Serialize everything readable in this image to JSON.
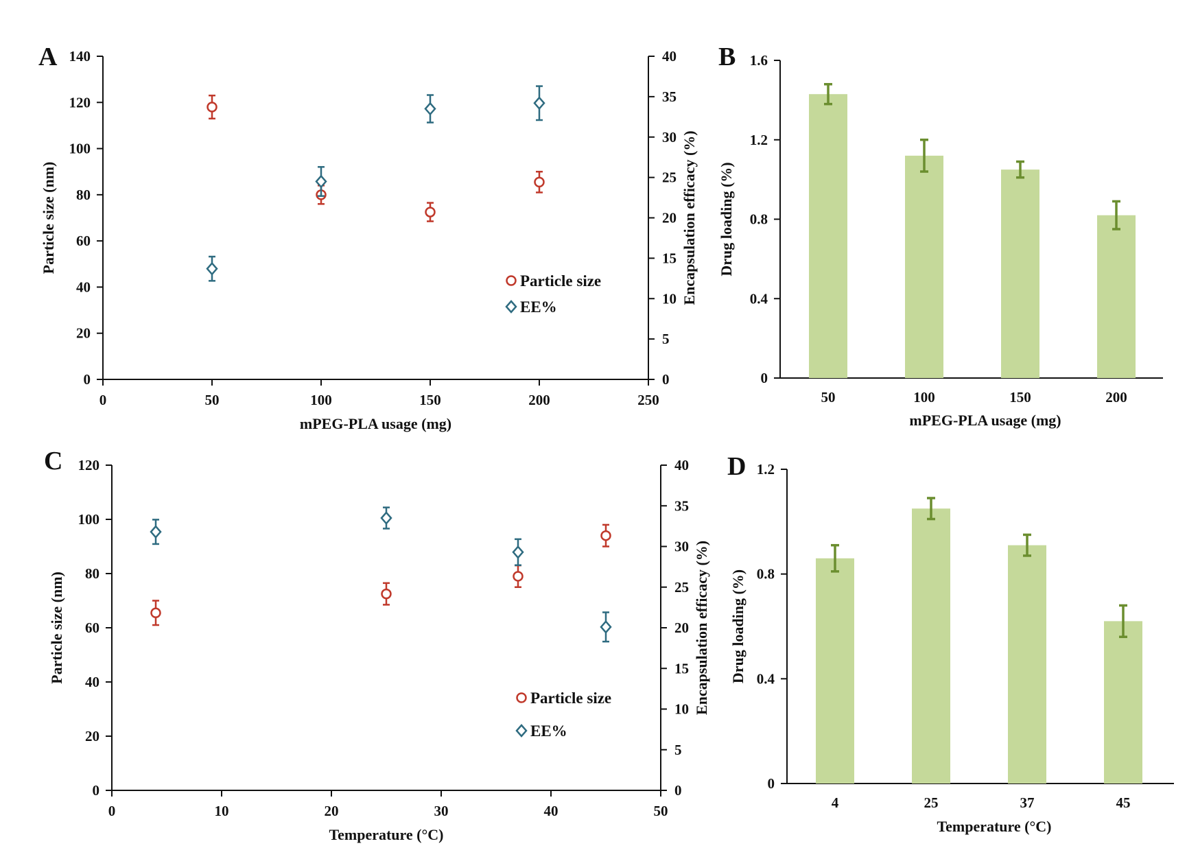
{
  "chart_data": [
    {
      "panel": "A",
      "type": "scatter",
      "xlabel": "mPEG-PLA usage (mg)",
      "ylabel": "Particle size (nm)",
      "y2label": "Encapsulation efficacy (%)",
      "xlim": [
        0,
        250
      ],
      "ylim": [
        0,
        140
      ],
      "y2lim": [
        0,
        40
      ],
      "xticks": [
        "0",
        "50",
        "100",
        "150",
        "200",
        "250"
      ],
      "yticks": [
        "0",
        "20",
        "40",
        "60",
        "80",
        "100",
        "120",
        "140"
      ],
      "y2ticks": [
        "0",
        "5",
        "10",
        "15",
        "20",
        "25",
        "30",
        "35",
        "40"
      ],
      "series": [
        {
          "name": "Particle size",
          "axis": "left",
          "marker": "circle",
          "color": "#c0392b",
          "x": [
            50,
            100,
            150,
            200
          ],
          "values": [
            118,
            80,
            72.5,
            85.5
          ],
          "errors": [
            5,
            4,
            4,
            4.5
          ]
        },
        {
          "name": "EE%",
          "axis": "right",
          "marker": "diamond",
          "color": "#2e6b80",
          "x": [
            50,
            100,
            150,
            200
          ],
          "values": [
            13.7,
            24.5,
            33.5,
            34.2
          ],
          "errors": [
            1.5,
            1.8,
            1.7,
            2.1
          ]
        }
      ],
      "legend": [
        "Particle size",
        "EE%"
      ]
    },
    {
      "panel": "B",
      "type": "bar",
      "xlabel": "mPEG-PLA usage (mg)",
      "ylabel": "Drug loading (%)",
      "ylim": [
        0,
        1.6
      ],
      "yticks": [
        "0",
        "0.4",
        "0.8",
        "1.2",
        "1.6"
      ],
      "categories": [
        "50",
        "100",
        "150",
        "200"
      ],
      "values": [
        1.43,
        1.12,
        1.05,
        0.82
      ],
      "errors": [
        0.05,
        0.08,
        0.04,
        0.07
      ],
      "color": "#c5d99a",
      "error_color": "#6b8e2f"
    },
    {
      "panel": "C",
      "type": "scatter",
      "xlabel": "Temperature (°C)",
      "ylabel": "Particle size (nm)",
      "y2label": "Encapsulation efficacy (%)",
      "xlim": [
        0,
        50
      ],
      "ylim": [
        0,
        120
      ],
      "y2lim": [
        0,
        40
      ],
      "xticks": [
        "0",
        "10",
        "20",
        "30",
        "40",
        "50"
      ],
      "yticks": [
        "0",
        "20",
        "40",
        "60",
        "80",
        "100",
        "120"
      ],
      "y2ticks": [
        "0",
        "5",
        "10",
        "15",
        "20",
        "25",
        "30",
        "35",
        "40"
      ],
      "series": [
        {
          "name": "Particle size",
          "axis": "left",
          "marker": "circle",
          "color": "#c0392b",
          "x": [
            4,
            25,
            37,
            45
          ],
          "values": [
            65.5,
            72.5,
            79,
            94
          ],
          "errors": [
            4.5,
            4,
            4,
            4
          ]
        },
        {
          "name": "EE%",
          "axis": "right",
          "marker": "diamond",
          "color": "#2e6b80",
          "x": [
            4,
            25,
            37,
            45
          ],
          "values": [
            31.8,
            33.5,
            29.3,
            20.1
          ],
          "errors": [
            1.5,
            1.3,
            1.6,
            1.8
          ]
        }
      ],
      "legend": [
        "Particle size",
        "EE%"
      ]
    },
    {
      "panel": "D",
      "type": "bar",
      "xlabel": "Temperature (°C)",
      "ylabel": "Drug loading (%)",
      "ylim": [
        0,
        1.2
      ],
      "yticks": [
        "0",
        "0.4",
        "0.8",
        "1.2"
      ],
      "categories": [
        "4",
        "25",
        "37",
        "45"
      ],
      "values": [
        0.86,
        1.05,
        0.91,
        0.62
      ],
      "errors": [
        0.05,
        0.04,
        0.04,
        0.06
      ],
      "color": "#c5d99a",
      "error_color": "#6b8e2f"
    }
  ]
}
